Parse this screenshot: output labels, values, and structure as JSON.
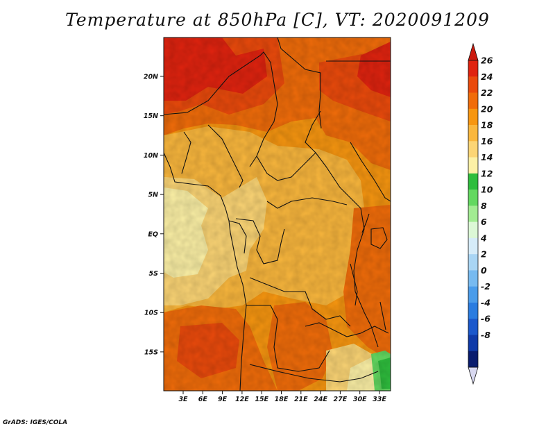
{
  "title": "Temperature at 850hPa [C], VT: 2020091209",
  "credit": "GrADS: IGES/COLA",
  "map": {
    "lat_labels": [
      "20N",
      "15N",
      "10N",
      "5N",
      "EQ",
      "5S",
      "10S",
      "15S"
    ],
    "lon_labels": [
      "3E",
      "6E",
      "9E",
      "12E",
      "15E",
      "18E",
      "21E",
      "24E",
      "27E",
      "30E",
      "33E"
    ]
  },
  "colorbar": {
    "labels": [
      "26",
      "24",
      "22",
      "20",
      "18",
      "16",
      "14",
      "12",
      "10",
      "8",
      "6",
      "4",
      "2",
      "0",
      "-2",
      "-4",
      "-6",
      "-8"
    ],
    "colors": [
      "#e0230f",
      "#ea4a0c",
      "#f06c0a",
      "#f79610",
      "#fab73d",
      "#fcd575",
      "#fdf1a6",
      "#2ebd3d",
      "#63d860",
      "#a2ec92",
      "#dcf8d6",
      "#d6ecf9",
      "#a9d5f4",
      "#77baf0",
      "#4a9cea",
      "#2a7ce0",
      "#1b58cc",
      "#0f3aa8",
      "#091c6e"
    ],
    "over_color": "#cc1a0e",
    "under_color": "#d8d8f0"
  }
}
